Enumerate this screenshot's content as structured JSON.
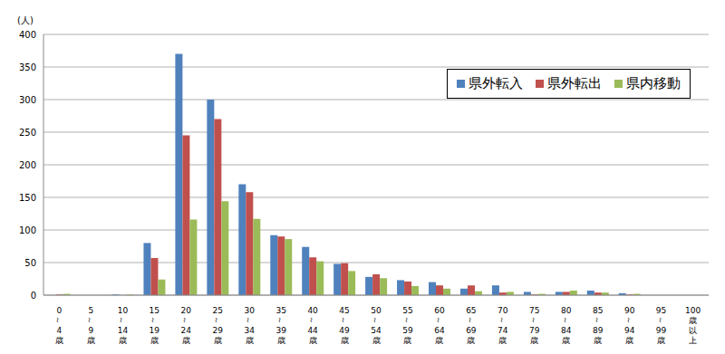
{
  "chart_data": {
    "type": "bar",
    "y_label": "(人)",
    "categories": [
      "0～4歳",
      "5～9歳",
      "10～14歳",
      "15～19歳",
      "20～24歳",
      "25～29歳",
      "30～34歳",
      "35～39歳",
      "40～44歳",
      "45～49歳",
      "50～54歳",
      "55～59歳",
      "60～64歳",
      "65～69歳",
      "70～74歳",
      "75～79歳",
      "80～84歳",
      "85～89歳",
      "90～94歳",
      "95～99歳",
      "100歳以上"
    ],
    "series": [
      {
        "name": "県外転入",
        "color": "#4f81bd",
        "values": [
          0,
          0,
          1,
          80,
          370,
          300,
          170,
          92,
          74,
          48,
          28,
          23,
          20,
          10,
          15,
          5,
          5,
          7,
          3,
          0,
          0
        ]
      },
      {
        "name": "県外転出",
        "color": "#c0504d",
        "values": [
          1,
          0,
          0,
          57,
          245,
          270,
          158,
          90,
          58,
          49,
          32,
          21,
          15,
          15,
          4,
          1,
          5,
          4,
          1,
          0,
          0
        ]
      },
      {
        "name": "県内移動",
        "color": "#9bbb59",
        "values": [
          2,
          0,
          1,
          24,
          116,
          144,
          117,
          86,
          52,
          37,
          26,
          14,
          10,
          6,
          5,
          2,
          7,
          4,
          2,
          0,
          0
        ]
      }
    ],
    "ylim": [
      0,
      400
    ],
    "yticks": [
      0,
      50,
      100,
      150,
      200,
      250,
      300,
      350,
      400
    ],
    "grid": true,
    "legend": "upper right"
  }
}
